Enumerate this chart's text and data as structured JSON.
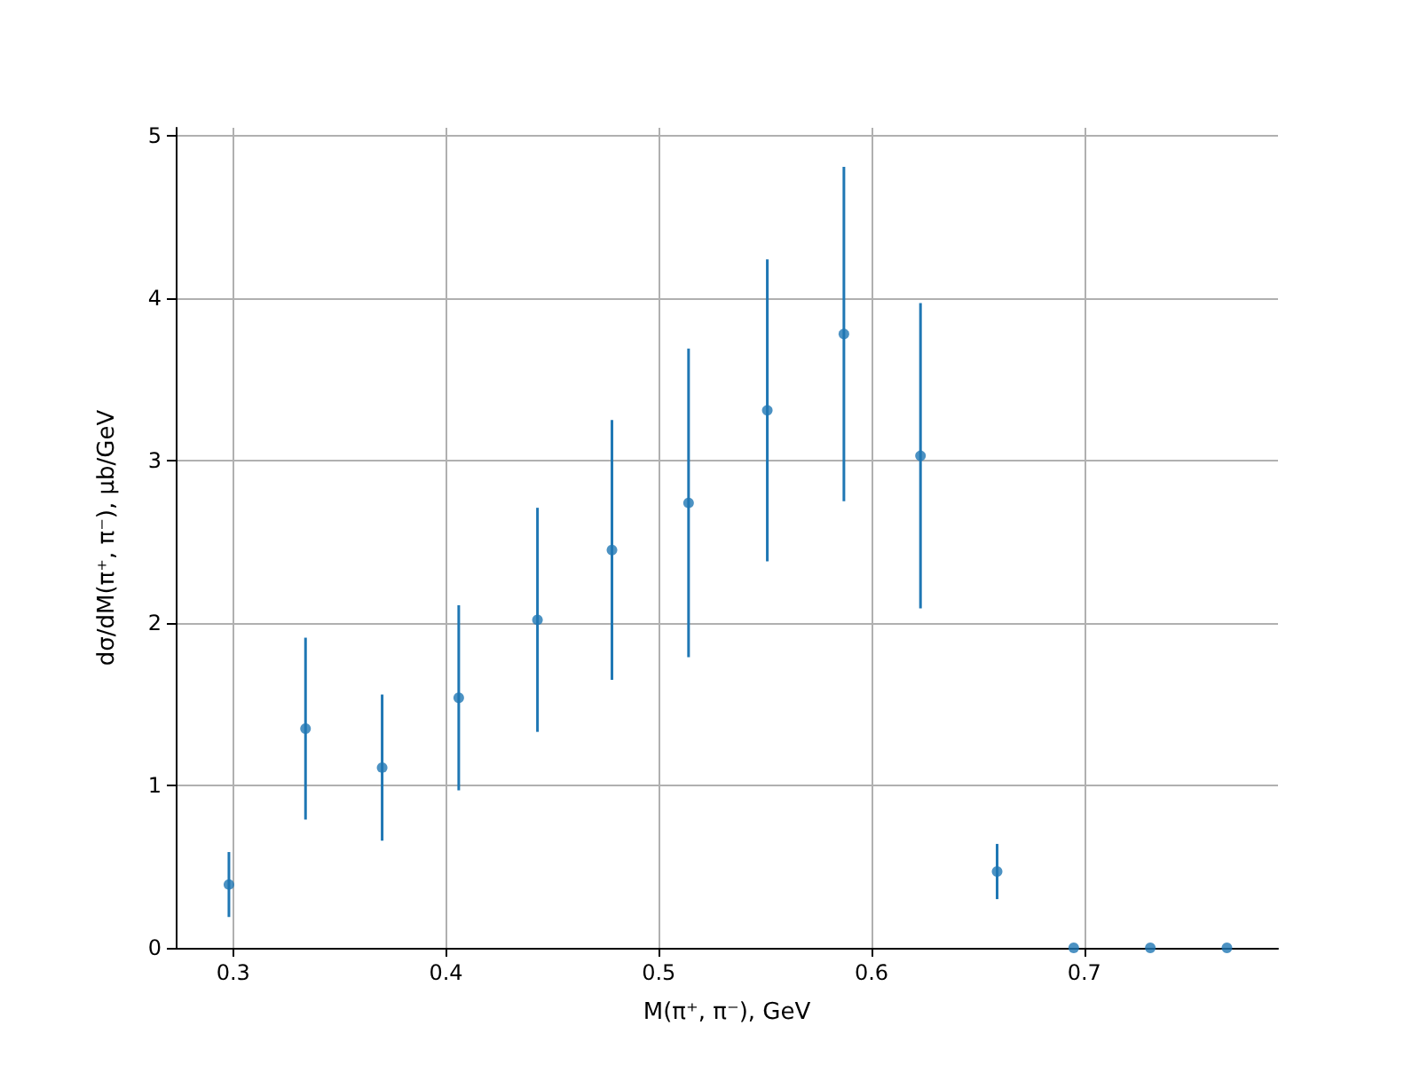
{
  "chart_data": {
    "type": "scatter",
    "xlabel": "M(π⁺, π⁻), GeV",
    "ylabel": "dσ/dM(π⁺, π⁻), μb/GeV",
    "x": [
      0.298,
      0.334,
      0.37,
      0.406,
      0.443,
      0.478,
      0.514,
      0.551,
      0.587,
      0.623,
      0.659,
      0.695,
      0.731,
      0.767
    ],
    "series": [
      {
        "color": "#1f77b4",
        "values": [
          0.39,
          1.35,
          1.11,
          1.54,
          2.02,
          2.45,
          2.74,
          3.31,
          3.78,
          3.03,
          0.47,
          0,
          0,
          0
        ],
        "errors": [
          0.2,
          0.56,
          0.45,
          0.57,
          0.69,
          0.8,
          0.95,
          0.93,
          1.03,
          0.94,
          0.17,
          null,
          null,
          null
        ]
      }
    ],
    "xlim": [
      0.273,
      0.791
    ],
    "xticks": [
      0.3,
      0.4,
      0.5,
      0.6,
      0.7
    ],
    "ylim": [
      0,
      5.05
    ],
    "yticks": [
      0,
      1,
      2,
      3,
      4,
      5
    ],
    "grid": true,
    "marker": "circle"
  }
}
